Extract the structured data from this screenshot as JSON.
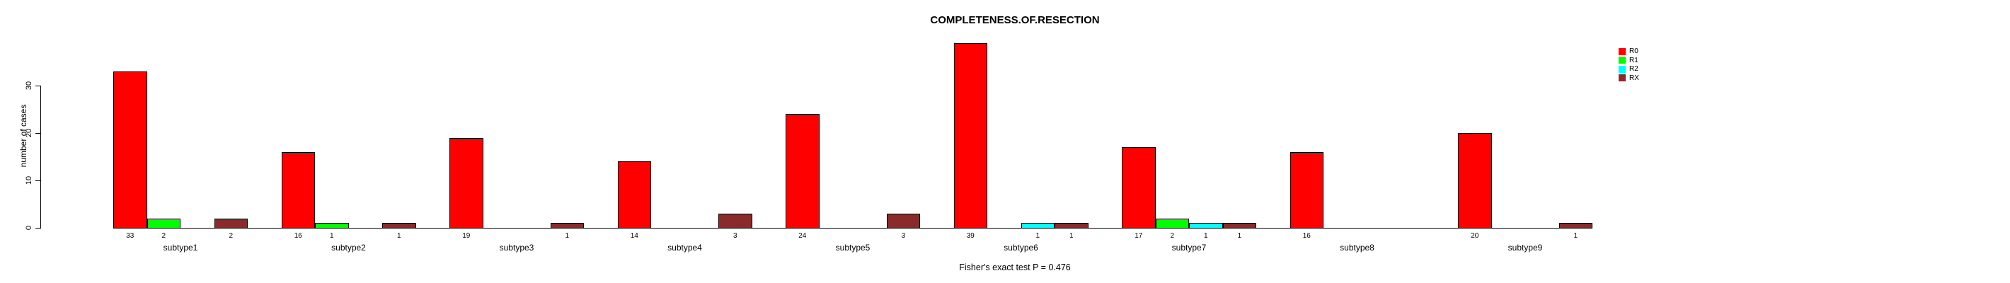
{
  "chart_data": {
    "type": "bar",
    "grouped": true,
    "title": "COMPLETENESS.OF.RESECTION",
    "subtitle": "Fisher's exact test P = 0.476",
    "ylabel": "number of cases",
    "xlabel": "",
    "categories": [
      "subtype1",
      "subtype2",
      "subtype3",
      "subtype4",
      "subtype5",
      "subtype6",
      "subtype7",
      "subtype8",
      "subtype9"
    ],
    "series": [
      {
        "name": "R0",
        "color": "#FF0000",
        "values": [
          33,
          16,
          19,
          14,
          24,
          39,
          17,
          16,
          20
        ]
      },
      {
        "name": "R1",
        "color": "#00FF00",
        "values": [
          2,
          1,
          0,
          0,
          0,
          0,
          2,
          0,
          0
        ]
      },
      {
        "name": "R2",
        "color": "#00FFFF",
        "values": [
          0,
          0,
          0,
          0,
          0,
          1,
          1,
          0,
          0
        ]
      },
      {
        "name": "RX",
        "color": "#8B2A2A",
        "values": [
          2,
          1,
          1,
          3,
          3,
          1,
          1,
          0,
          1
        ]
      }
    ],
    "yticks": [
      0,
      10,
      20,
      30
    ],
    "ylim": [
      0,
      39
    ],
    "value_labels": "nonzero bar values printed below baseline",
    "legend_position": "top-right",
    "grid": false,
    "axis_color": "#000000",
    "background": "#FFFFFF"
  }
}
